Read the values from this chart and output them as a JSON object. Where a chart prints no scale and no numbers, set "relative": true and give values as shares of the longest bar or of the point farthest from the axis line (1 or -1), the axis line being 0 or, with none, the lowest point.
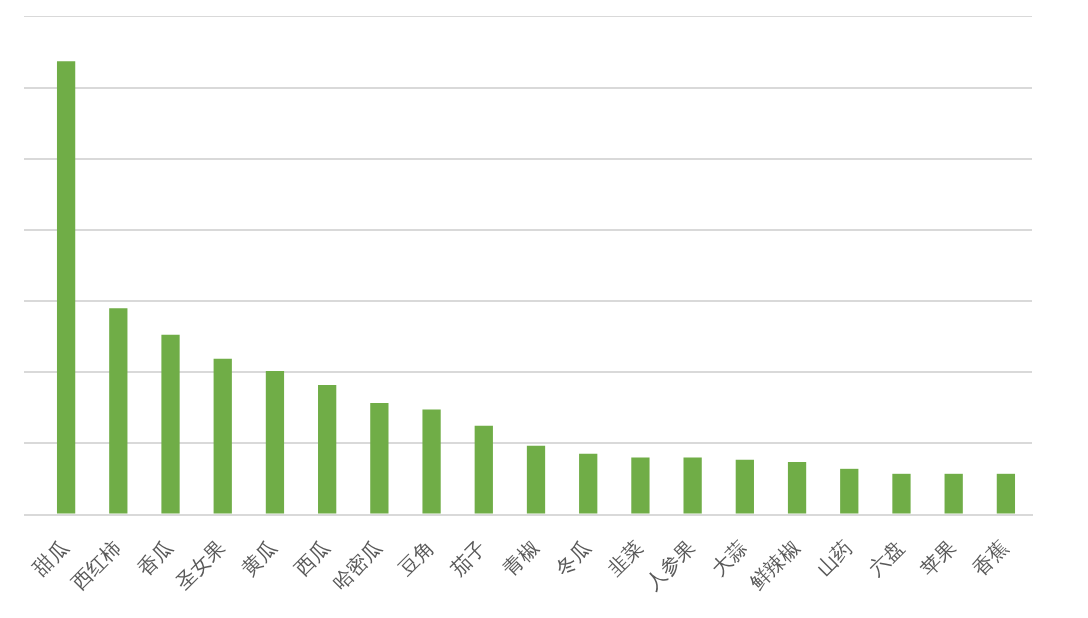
{
  "chart_data": {
    "type": "bar",
    "relative": true,
    "grid": "y",
    "color": "#70ad47",
    "categories": [
      "甜瓜",
      "西红柿",
      "香瓜",
      "圣女果",
      "黄瓜",
      "西瓜",
      "哈密瓜",
      "豆角",
      "茄子",
      "青椒",
      "冬瓜",
      "韭菜",
      "人参果",
      "大蒜",
      "鲜辣椒",
      "山药",
      "六盘",
      "苹果",
      "香蕉"
    ],
    "values": [
      1,
      0.455,
      0.397,
      0.344,
      0.317,
      0.286,
      0.246,
      0.232,
      0.196,
      0.152,
      0.134,
      0.126,
      0.126,
      0.121,
      0.116,
      0.101,
      0.09,
      0.09,
      0.09
    ]
  }
}
